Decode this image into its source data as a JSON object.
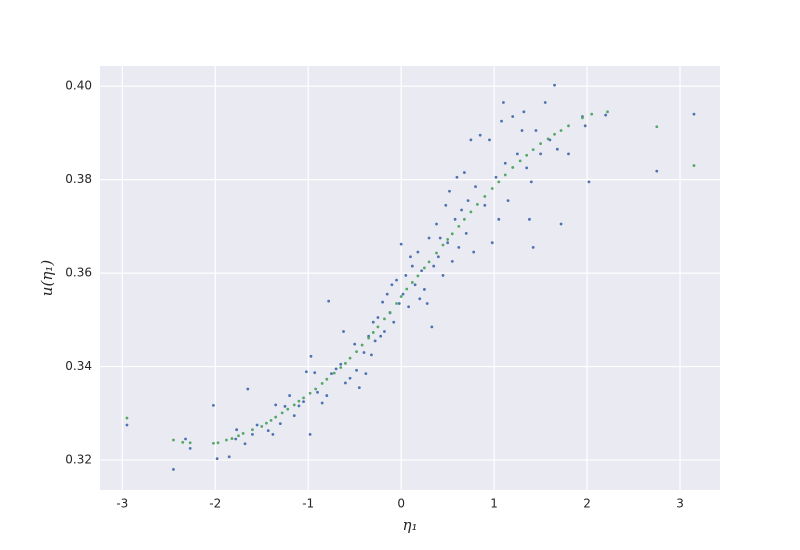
{
  "chart_data": {
    "type": "scatter",
    "xlabel": "η₁",
    "ylabel": "u(η₁)",
    "xlim": [
      -3.24,
      3.43
    ],
    "ylim": [
      0.3136,
      0.4043
    ],
    "xticks": [
      -3,
      -2,
      -1,
      0,
      1,
      2,
      3
    ],
    "yticks": [
      {
        "value": 0.32,
        "label": "0.32"
      },
      {
        "value": 0.34,
        "label": "0.34"
      },
      {
        "value": 0.36,
        "label": "0.36"
      },
      {
        "value": 0.38,
        "label": "0.38"
      },
      {
        "value": 0.4,
        "label": "0.40"
      }
    ],
    "grid": true,
    "series": [
      {
        "color": "#4c72b0",
        "x": [
          -2.95,
          -2.45,
          -2.32,
          -2.27,
          -2.02,
          -1.98,
          -1.85,
          -1.78,
          -1.77,
          -1.68,
          -1.65,
          -1.6,
          -1.55,
          -1.43,
          -1.38,
          -1.35,
          -1.3,
          -1.25,
          -1.2,
          -1.15,
          -1.1,
          -1.05,
          -1.02,
          -0.98,
          -0.97,
          -0.93,
          -0.9,
          -0.85,
          -0.8,
          -0.78,
          -0.75,
          -0.7,
          -0.65,
          -0.62,
          -0.6,
          -0.55,
          -0.5,
          -0.48,
          -0.45,
          -0.4,
          -0.38,
          -0.35,
          -0.32,
          -0.3,
          -0.28,
          -0.25,
          -0.22,
          -0.2,
          -0.18,
          -0.15,
          -0.12,
          -0.1,
          -0.08,
          -0.05,
          -0.02,
          0.0,
          0.02,
          0.05,
          0.08,
          0.1,
          0.12,
          0.15,
          0.18,
          0.2,
          0.22,
          0.25,
          0.28,
          0.3,
          0.33,
          0.35,
          0.38,
          0.4,
          0.42,
          0.45,
          0.48,
          0.5,
          0.52,
          0.55,
          0.58,
          0.6,
          0.62,
          0.65,
          0.68,
          0.7,
          0.72,
          0.75,
          0.78,
          0.8,
          0.85,
          0.9,
          0.95,
          0.98,
          1.02,
          1.05,
          1.08,
          1.1,
          1.12,
          1.15,
          1.2,
          1.25,
          1.3,
          1.32,
          1.35,
          1.38,
          1.4,
          1.42,
          1.45,
          1.5,
          1.55,
          1.6,
          1.65,
          1.68,
          1.72,
          1.8,
          1.95,
          1.98,
          2.02,
          2.2,
          2.75,
          3.15
        ],
        "values": [
          0.3275,
          0.318,
          0.3245,
          0.3225,
          0.3317,
          0.3203,
          0.3207,
          0.3245,
          0.3265,
          0.3235,
          0.3352,
          0.3255,
          0.3275,
          0.3263,
          0.3255,
          0.3318,
          0.3278,
          0.3315,
          0.3338,
          0.3295,
          0.3316,
          0.3325,
          0.3389,
          0.3255,
          0.3422,
          0.3387,
          0.3345,
          0.3322,
          0.3338,
          0.354,
          0.3385,
          0.3395,
          0.3405,
          0.3475,
          0.3365,
          0.3375,
          0.3448,
          0.3392,
          0.3355,
          0.343,
          0.3385,
          0.3465,
          0.3425,
          0.3495,
          0.3455,
          0.3505,
          0.3465,
          0.3538,
          0.3475,
          0.3555,
          0.3515,
          0.3575,
          0.3495,
          0.3585,
          0.3535,
          0.3662,
          0.3555,
          0.3595,
          0.3528,
          0.3635,
          0.3615,
          0.3575,
          0.3645,
          0.3545,
          0.3605,
          0.3565,
          0.3535,
          0.3675,
          0.3485,
          0.3615,
          0.3705,
          0.3635,
          0.3675,
          0.3595,
          0.3745,
          0.3665,
          0.3775,
          0.3625,
          0.3715,
          0.3805,
          0.3655,
          0.3735,
          0.3815,
          0.3685,
          0.3755,
          0.3885,
          0.3645,
          0.3785,
          0.3895,
          0.3745,
          0.3885,
          0.3665,
          0.3805,
          0.3715,
          0.3925,
          0.3965,
          0.3835,
          0.3755,
          0.3935,
          0.3855,
          0.3905,
          0.3945,
          0.3825,
          0.3715,
          0.3795,
          0.3655,
          0.3905,
          0.3855,
          0.3965,
          0.3885,
          0.4002,
          0.3865,
          0.3705,
          0.3855,
          0.3935,
          0.3915,
          0.3795,
          0.3938,
          0.3818,
          0.394
        ]
      },
      {
        "color": "#55a868",
        "x": [
          -2.95,
          -2.45,
          -2.35,
          -2.27,
          -2.02,
          -1.97,
          -1.88,
          -1.82,
          -1.75,
          -1.7,
          -1.6,
          -1.5,
          -1.45,
          -1.4,
          -1.35,
          -1.28,
          -1.22,
          -1.15,
          -1.1,
          -1.05,
          -0.98,
          -0.92,
          -0.85,
          -0.8,
          -0.72,
          -0.65,
          -0.6,
          -0.55,
          -0.48,
          -0.42,
          -0.35,
          -0.3,
          -0.25,
          -0.18,
          -0.12,
          -0.05,
          0.0,
          0.06,
          0.12,
          0.18,
          0.25,
          0.3,
          0.38,
          0.45,
          0.5,
          0.55,
          0.62,
          0.68,
          0.75,
          0.82,
          0.9,
          0.98,
          1.05,
          1.12,
          1.2,
          1.28,
          1.35,
          1.42,
          1.5,
          1.58,
          1.65,
          1.72,
          1.8,
          1.95,
          2.05,
          2.22,
          2.75,
          3.15
        ],
        "values": [
          0.329,
          0.3243,
          0.3238,
          0.3237,
          0.3236,
          0.3237,
          0.3243,
          0.3246,
          0.3252,
          0.3257,
          0.3265,
          0.3272,
          0.3279,
          0.3285,
          0.3292,
          0.3301,
          0.3309,
          0.3318,
          0.3326,
          0.3333,
          0.3343,
          0.3352,
          0.3364,
          0.3373,
          0.3386,
          0.3398,
          0.3407,
          0.3418,
          0.3432,
          0.3446,
          0.3461,
          0.3473,
          0.3485,
          0.3502,
          0.3516,
          0.3535,
          0.355,
          0.3566,
          0.358,
          0.3594,
          0.3611,
          0.3624,
          0.3643,
          0.366,
          0.3672,
          0.3684,
          0.37,
          0.3715,
          0.3731,
          0.3747,
          0.3764,
          0.3781,
          0.3795,
          0.381,
          0.3826,
          0.384,
          0.3852,
          0.3864,
          0.3877,
          0.3887,
          0.3897,
          0.3905,
          0.3915,
          0.3932,
          0.394,
          0.3945,
          0.3913,
          0.383
        ]
      }
    ]
  }
}
